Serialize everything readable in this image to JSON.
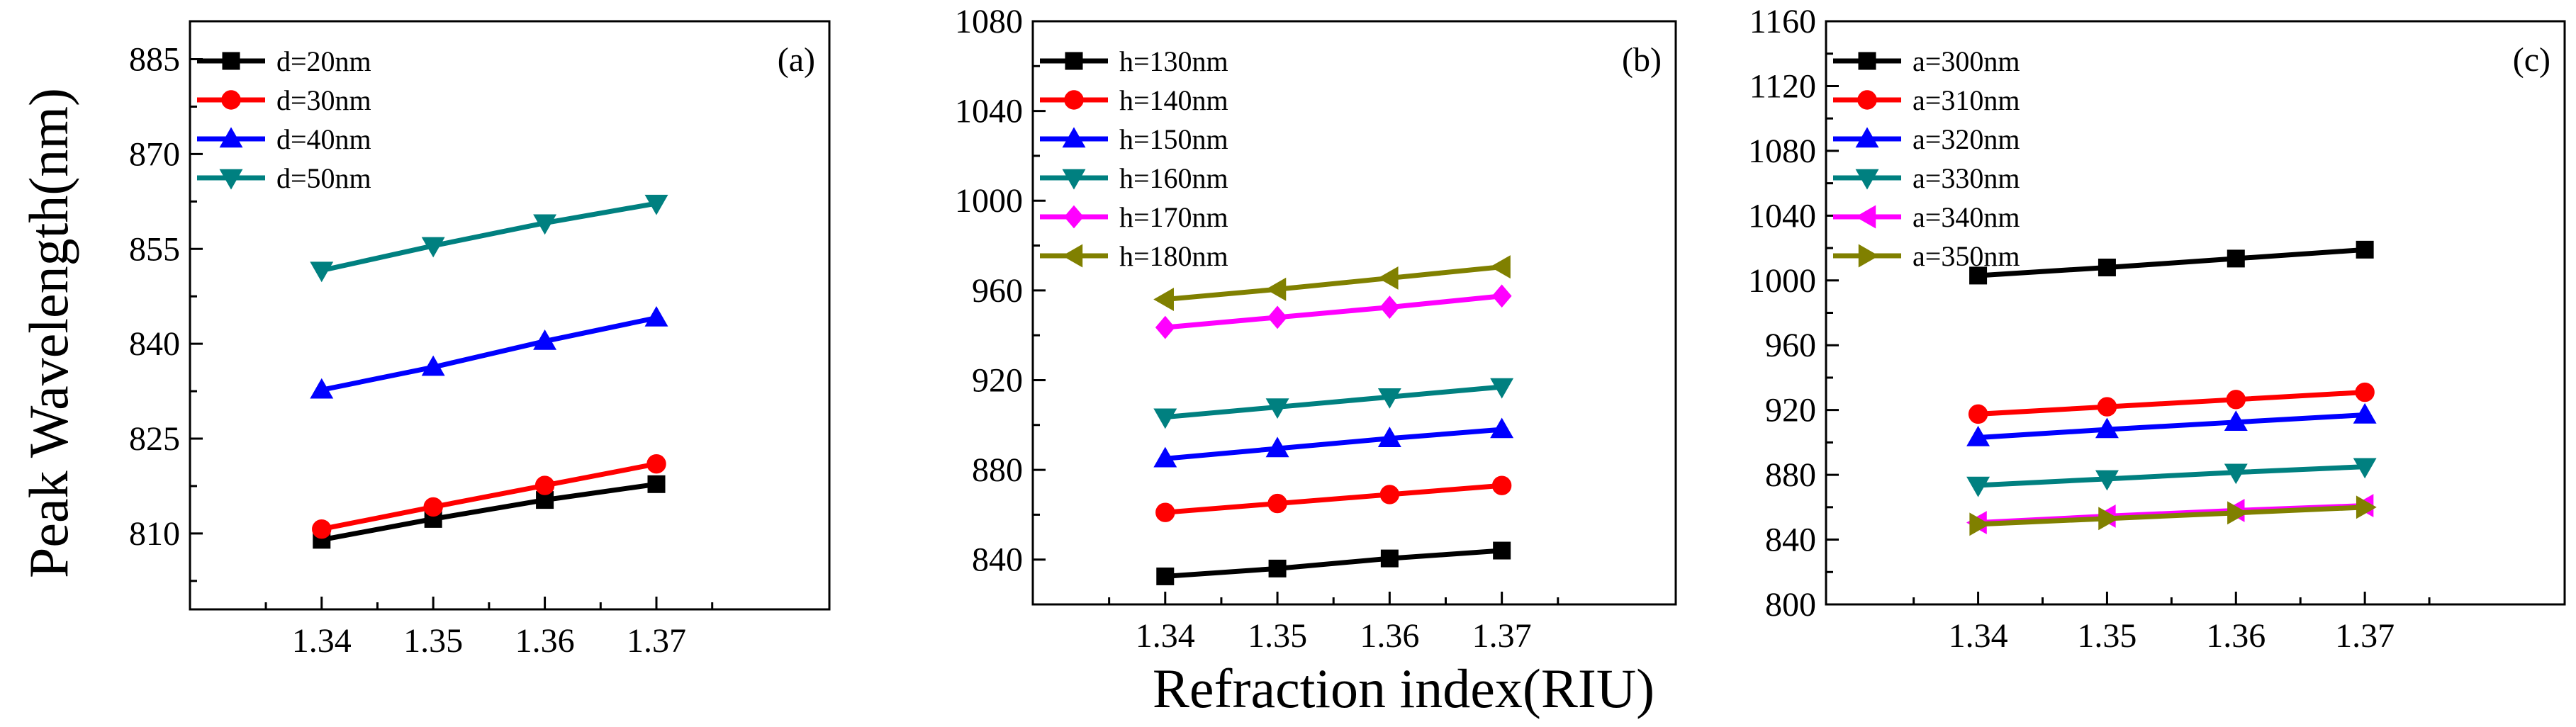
{
  "figure": {
    "ylabel": "Peak Wavelength(nm)",
    "xlabel": "Refraction index(RIU)"
  },
  "chart_data": [
    {
      "type": "line",
      "panel_label": "(a)",
      "x": [
        1.34,
        1.35,
        1.36,
        1.37
      ],
      "xticks": [
        "1.34",
        "1.35",
        "1.36",
        "1.37"
      ],
      "xlim": [
        1.3282,
        1.3855
      ],
      "ylim": [
        798,
        891
      ],
      "yticks": [
        "810",
        "825",
        "840",
        "855",
        "870",
        "885"
      ],
      "legend_position": "top-left",
      "series": [
        {
          "name": "d=20nm",
          "color": "#000000",
          "marker": "square",
          "values": [
            809.0,
            812.3,
            815.3,
            817.8
          ]
        },
        {
          "name": "d=30nm",
          "color": "#ff0000",
          "marker": "circle",
          "values": [
            810.7,
            814.2,
            817.6,
            821.0
          ]
        },
        {
          "name": "d=40nm",
          "color": "#0000ff",
          "marker": "triangle-up",
          "values": [
            832.7,
            836.3,
            840.4,
            844.1
          ]
        },
        {
          "name": "d=50nm",
          "color": "#008080",
          "marker": "triangle-down",
          "values": [
            851.6,
            855.5,
            859.1,
            862.2
          ]
        }
      ]
    },
    {
      "type": "line",
      "panel_label": "(b)",
      "x": [
        1.34,
        1.35,
        1.36,
        1.37
      ],
      "xticks": [
        "1.34",
        "1.35",
        "1.36",
        "1.37"
      ],
      "xlim": [
        1.3282,
        1.3855
      ],
      "ylim": [
        820,
        1080
      ],
      "yticks": [
        "840",
        "880",
        "920",
        "960",
        "1000",
        "1040",
        "1080"
      ],
      "legend_position": "top-left",
      "series": [
        {
          "name": "h=130nm",
          "color": "#000000",
          "marker": "square",
          "values": [
            832.5,
            836.0,
            840.5,
            844.0
          ]
        },
        {
          "name": "h=140nm",
          "color": "#ff0000",
          "marker": "circle",
          "values": [
            861.0,
            865.0,
            869.0,
            873.0
          ]
        },
        {
          "name": "h=150nm",
          "color": "#0000ff",
          "marker": "triangle-up",
          "values": [
            885.0,
            889.5,
            894.0,
            898.0
          ]
        },
        {
          "name": "h=160nm",
          "color": "#008080",
          "marker": "triangle-down",
          "values": [
            903.5,
            908.0,
            912.5,
            917.0
          ]
        },
        {
          "name": "h=170nm",
          "color": "#ff00ff",
          "marker": "diamond",
          "values": [
            943.5,
            948.0,
            952.5,
            957.5
          ]
        },
        {
          "name": "h=180nm",
          "color": "#808000",
          "marker": "triangle-left",
          "values": [
            956.0,
            960.5,
            965.5,
            970.5
          ]
        }
      ]
    },
    {
      "type": "line",
      "panel_label": "(c)",
      "x": [
        1.34,
        1.35,
        1.36,
        1.37
      ],
      "xticks": [
        "1.34",
        "1.35",
        "1.36",
        "1.37"
      ],
      "xlim": [
        1.3282,
        1.3855
      ],
      "ylim": [
        800,
        1160
      ],
      "yticks": [
        "800",
        "840",
        "880",
        "920",
        "960",
        "1000",
        "1040",
        "1080",
        "1120",
        "1160"
      ],
      "legend_position": "top-left",
      "series": [
        {
          "name": "a=300nm",
          "color": "#000000",
          "marker": "square",
          "values": [
            1003.0,
            1008.0,
            1013.5,
            1019.0
          ]
        },
        {
          "name": "a=310nm",
          "color": "#ff0000",
          "marker": "circle",
          "values": [
            917.5,
            922.0,
            926.5,
            931.0
          ]
        },
        {
          "name": "a=320nm",
          "color": "#0000ff",
          "marker": "triangle-up",
          "values": [
            903.0,
            908.0,
            912.5,
            917.0
          ]
        },
        {
          "name": "a=330nm",
          "color": "#008080",
          "marker": "triangle-down",
          "values": [
            873.5,
            877.5,
            881.5,
            885.0
          ]
        },
        {
          "name": "a=340nm",
          "color": "#ff00ff",
          "marker": "triangle-left",
          "values": [
            850.5,
            854.5,
            858.0,
            861.0
          ]
        },
        {
          "name": "a=350nm",
          "color": "#808000",
          "marker": "triangle-right",
          "values": [
            849.5,
            853.0,
            856.5,
            860.0
          ]
        }
      ]
    }
  ]
}
